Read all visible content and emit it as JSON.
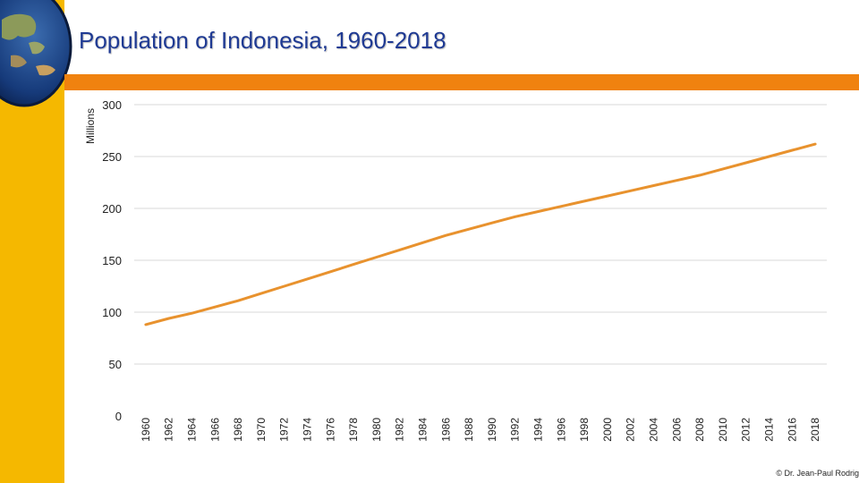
{
  "colors": {
    "accent": "#F0820F",
    "left_bar": "#F5B800",
    "title": "#1F3A93",
    "line": "#E8922E",
    "grid": "#D9D9D9",
    "axis_text": "#222222"
  },
  "icons": {
    "logo": "globe-icon"
  },
  "credit": "© Dr. Jean-Paul Rodrig",
  "chart_data": {
    "type": "line",
    "title": "Population of Indonesia, 1960-2018",
    "xlabel": "",
    "ylabel": "Millions",
    "ylim": [
      0,
      300
    ],
    "yticks": [
      0,
      50,
      100,
      150,
      200,
      250,
      300
    ],
    "grid": true,
    "x": [
      "1960",
      "1962",
      "1964",
      "1966",
      "1968",
      "1970",
      "1972",
      "1974",
      "1976",
      "1978",
      "1980",
      "1982",
      "1984",
      "1986",
      "1988",
      "1990",
      "1992",
      "1994",
      "1996",
      "1998",
      "2000",
      "2002",
      "2004",
      "2006",
      "2008",
      "2010",
      "2012",
      "2014",
      "2016",
      "2018"
    ],
    "series": [
      {
        "name": "Population of Indonesia",
        "values": [
          88,
          94,
          99,
          105,
          111,
          118,
          125,
          132,
          139,
          146,
          153,
          160,
          167,
          174,
          180,
          186,
          192,
          197,
          202,
          207,
          212,
          217,
          222,
          227,
          232,
          238,
          244,
          250,
          256,
          262
        ]
      }
    ]
  }
}
